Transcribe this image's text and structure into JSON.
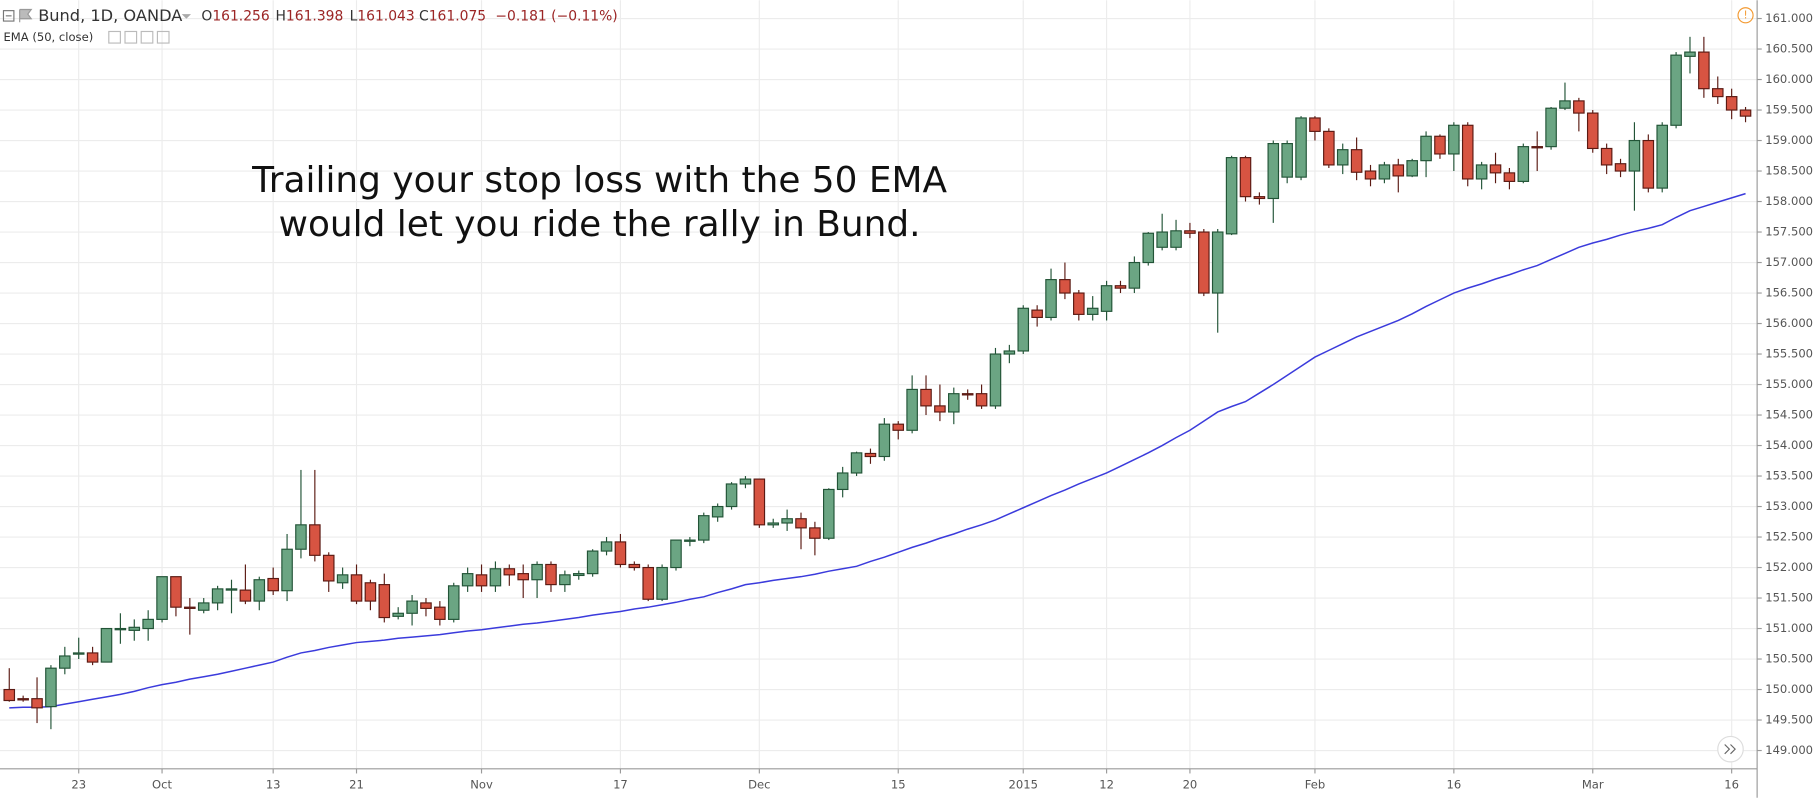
{
  "header": {
    "symbol": "Bund, 1D, OANDA",
    "ohlc": [
      {
        "label": "O",
        "value": "161.256"
      },
      {
        "label": "H",
        "value": "161.398"
      },
      {
        "label": "L",
        "value": "161.043"
      },
      {
        "label": "C",
        "value": "161.075"
      }
    ],
    "change": "−0.181 (−0.11%)"
  },
  "chart_data": {
    "type": "candlestick",
    "annotation": [
      "Trailing your stop loss with the 50 EMA",
      "would let you ride the rally in Bund."
    ],
    "categories": [
      null,
      null,
      null,
      null,
      null,
      "23",
      null,
      null,
      null,
      null,
      null,
      "Oct",
      null,
      null,
      null,
      null,
      null,
      null,
      null,
      "13",
      null,
      null,
      null,
      null,
      null,
      "21",
      null,
      null,
      null,
      null,
      null,
      null,
      null,
      null,
      "Nov",
      null,
      null,
      null,
      null,
      null,
      null,
      null,
      null,
      null,
      "17",
      null,
      null,
      null,
      null,
      null,
      null,
      null,
      null,
      null,
      "Dec",
      null,
      null,
      null,
      null,
      null,
      null,
      null,
      null,
      null,
      "15",
      null,
      null,
      null,
      null,
      null,
      null,
      null,
      null,
      "2015",
      null,
      null,
      null,
      null,
      null,
      "12",
      null,
      null,
      null,
      null,
      null,
      "20",
      null,
      null,
      null,
      null,
      null,
      null,
      null,
      null,
      "Feb",
      null,
      null,
      null,
      null,
      null,
      null,
      null,
      null,
      null,
      "16",
      null,
      null,
      null,
      null,
      null,
      null,
      null,
      null,
      null,
      "Mar",
      null,
      null,
      null,
      null,
      null,
      null,
      null,
      null,
      null,
      "16",
      null
    ],
    "open": [
      150.0,
      149.85,
      149.85,
      149.72,
      150.35,
      150.58,
      150.6,
      150.45,
      150.98,
      150.97,
      151.0,
      151.15,
      151.85,
      151.35,
      151.3,
      151.42,
      151.63,
      151.63,
      151.45,
      151.82,
      151.62,
      152.3,
      152.7,
      152.2,
      151.75,
      151.88,
      151.75,
      151.72,
      151.2,
      151.25,
      151.42,
      151.35,
      151.15,
      151.7,
      151.88,
      151.7,
      151.98,
      151.9,
      151.8,
      152.05,
      151.72,
      151.87,
      151.9,
      152.27,
      152.42,
      152.05,
      152.0,
      151.48,
      152.0,
      152.43,
      152.45,
      152.83,
      153.0,
      153.37,
      153.45,
      152.7,
      152.73,
      152.8,
      152.65,
      152.48,
      153.28,
      153.55,
      153.87,
      153.82,
      154.35,
      154.25,
      154.92,
      154.65,
      154.55,
      154.85,
      154.85,
      154.65,
      155.5,
      155.55,
      156.22,
      156.1,
      156.72,
      156.5,
      156.15,
      156.2,
      156.62,
      156.58,
      157.0,
      157.25,
      157.25,
      157.52,
      157.5,
      156.5,
      157.47,
      158.72,
      158.08,
      158.05,
      158.4,
      158.4,
      159.37,
      159.15,
      158.6,
      158.85,
      158.5,
      158.37,
      158.6,
      158.42,
      158.67,
      159.07,
      158.78,
      159.25,
      158.37,
      158.6,
      158.47,
      158.33,
      158.9,
      158.9,
      159.53,
      159.65,
      159.45,
      158.87,
      158.62,
      158.5,
      159.0,
      158.22,
      159.25,
      160.38,
      160.45,
      159.85,
      159.72,
      159.5
    ],
    "high": [
      150.35,
      149.9,
      150.2,
      150.4,
      150.7,
      150.85,
      150.7,
      151.0,
      151.25,
      151.15,
      151.3,
      151.85,
      151.85,
      151.5,
      151.5,
      151.7,
      151.8,
      152.05,
      151.85,
      152.0,
      152.55,
      153.6,
      153.6,
      152.25,
      152.0,
      152.05,
      151.8,
      151.9,
      151.35,
      151.55,
      151.5,
      151.45,
      151.75,
      152.0,
      152.05,
      152.1,
      152.05,
      152.05,
      152.1,
      152.1,
      151.95,
      151.95,
      152.3,
      152.5,
      152.55,
      152.1,
      152.05,
      152.05,
      152.45,
      152.5,
      152.9,
      153.05,
      153.4,
      153.5,
      153.45,
      152.8,
      152.95,
      152.9,
      152.75,
      153.3,
      153.65,
      153.9,
      153.95,
      154.45,
      154.4,
      155.15,
      155.15,
      155.0,
      154.95,
      154.92,
      155.0,
      155.6,
      155.65,
      156.3,
      156.3,
      156.9,
      157.0,
      156.55,
      156.45,
      156.7,
      156.7,
      157.1,
      157.5,
      157.8,
      157.7,
      157.65,
      157.55,
      157.55,
      158.75,
      158.75,
      158.15,
      159.0,
      159.0,
      159.4,
      159.4,
      159.2,
      158.95,
      159.05,
      158.6,
      158.65,
      158.7,
      158.7,
      159.15,
      159.1,
      159.3,
      159.3,
      158.65,
      158.8,
      158.55,
      158.95,
      159.15,
      159.55,
      159.95,
      159.7,
      159.5,
      158.95,
      158.7,
      159.3,
      159.1,
      159.3,
      160.45,
      160.7,
      160.7,
      160.05,
      159.85,
      159.55
    ],
    "low": [
      149.8,
      149.8,
      149.45,
      149.35,
      150.25,
      150.5,
      150.4,
      150.45,
      150.75,
      150.8,
      150.8,
      151.1,
      151.2,
      150.9,
      151.25,
      151.3,
      151.25,
      151.4,
      151.3,
      151.55,
      151.45,
      152.15,
      152.1,
      151.6,
      151.65,
      151.4,
      151.3,
      151.1,
      151.15,
      151.05,
      151.2,
      151.05,
      151.1,
      151.6,
      151.6,
      151.6,
      151.7,
      151.5,
      151.5,
      151.6,
      151.6,
      151.8,
      151.85,
      152.2,
      152.0,
      151.95,
      151.45,
      151.45,
      151.95,
      152.35,
      152.4,
      152.75,
      152.95,
      153.3,
      152.65,
      152.65,
      152.6,
      152.3,
      152.2,
      152.45,
      153.15,
      153.5,
      153.7,
      153.75,
      154.1,
      154.2,
      154.5,
      154.4,
      154.35,
      154.75,
      154.6,
      154.6,
      155.35,
      155.5,
      155.95,
      156.05,
      156.4,
      156.05,
      156.05,
      156.05,
      156.5,
      156.5,
      156.95,
      157.2,
      157.2,
      157.4,
      156.45,
      155.85,
      157.45,
      158.0,
      157.95,
      157.65,
      158.3,
      158.35,
      159.0,
      158.55,
      158.45,
      158.35,
      158.25,
      158.3,
      158.15,
      158.4,
      158.4,
      158.7,
      158.5,
      158.25,
      158.2,
      158.3,
      158.2,
      158.3,
      158.5,
      158.85,
      159.5,
      159.15,
      158.8,
      158.45,
      158.4,
      157.85,
      158.15,
      158.15,
      159.2,
      160.1,
      159.7,
      159.6,
      159.35,
      159.3
    ],
    "close": [
      149.82,
      149.83,
      149.7,
      150.35,
      150.55,
      150.6,
      150.45,
      151.0,
      151.0,
      151.02,
      151.15,
      151.85,
      151.35,
      151.33,
      151.42,
      151.65,
      151.65,
      151.45,
      151.8,
      151.62,
      152.3,
      152.7,
      152.2,
      151.78,
      151.88,
      151.45,
      151.45,
      151.18,
      151.25,
      151.45,
      151.33,
      151.15,
      151.7,
      151.9,
      151.7,
      151.98,
      151.88,
      151.8,
      152.05,
      151.72,
      151.88,
      151.9,
      152.27,
      152.42,
      152.05,
      152.0,
      151.48,
      152.0,
      152.45,
      152.45,
      152.85,
      153.0,
      153.37,
      153.45,
      152.7,
      152.73,
      152.8,
      152.65,
      152.48,
      153.28,
      153.55,
      153.88,
      153.82,
      154.35,
      154.25,
      154.92,
      154.65,
      154.55,
      154.85,
      154.83,
      154.65,
      155.5,
      155.55,
      156.25,
      156.1,
      156.72,
      156.5,
      156.15,
      156.25,
      156.62,
      156.58,
      157.0,
      157.48,
      157.5,
      157.52,
      157.48,
      156.5,
      157.5,
      158.72,
      158.08,
      158.05,
      158.95,
      158.95,
      159.37,
      159.15,
      158.6,
      158.85,
      158.48,
      158.37,
      158.6,
      158.42,
      158.67,
      159.07,
      158.78,
      159.25,
      158.37,
      158.6,
      158.47,
      158.33,
      158.9,
      158.88,
      159.53,
      159.65,
      159.45,
      158.87,
      158.6,
      158.5,
      159.0,
      158.22,
      159.25,
      160.4,
      160.45,
      159.85,
      159.72,
      159.5,
      159.4
    ],
    "up_color": "#6ba583",
    "up_border": "#225437",
    "down_color": "#d75442",
    "down_border": "#5b1a13",
    "series": [
      {
        "name": "EMA (50, close)",
        "type": "line",
        "color": "#3b3bdc",
        "values": [
          149.7,
          149.71,
          149.71,
          149.72,
          149.76,
          149.8,
          149.84,
          149.88,
          149.92,
          149.97,
          150.03,
          150.08,
          150.12,
          150.17,
          150.21,
          150.25,
          150.3,
          150.35,
          150.4,
          150.45,
          150.53,
          150.6,
          150.64,
          150.69,
          150.73,
          150.77,
          150.79,
          150.81,
          150.84,
          150.86,
          150.88,
          150.9,
          150.93,
          150.96,
          150.98,
          151.01,
          151.04,
          151.07,
          151.09,
          151.12,
          151.15,
          151.18,
          151.22,
          151.25,
          151.28,
          151.32,
          151.35,
          151.39,
          151.43,
          151.48,
          151.52,
          151.59,
          151.65,
          151.72,
          151.75,
          151.79,
          151.82,
          151.85,
          151.89,
          151.94,
          151.98,
          152.02,
          152.1,
          152.17,
          152.25,
          152.33,
          152.4,
          152.48,
          152.55,
          152.63,
          152.7,
          152.78,
          152.88,
          152.98,
          153.08,
          153.18,
          153.27,
          153.37,
          153.46,
          153.55,
          153.66,
          153.77,
          153.88,
          154.0,
          154.13,
          154.25,
          154.4,
          154.55,
          154.64,
          154.72,
          154.86,
          155.0,
          155.15,
          155.3,
          155.45,
          155.56,
          155.67,
          155.78,
          155.87,
          155.96,
          156.05,
          156.16,
          156.28,
          156.39,
          156.5,
          156.58,
          156.65,
          156.73,
          156.8,
          156.88,
          156.95,
          157.05,
          157.15,
          157.25,
          157.32,
          157.38,
          157.45,
          157.51,
          157.56,
          157.62,
          157.74,
          157.85,
          157.92,
          157.99,
          158.06,
          158.13
        ]
      }
    ],
    "ylim": [
      148.7,
      161.3
    ],
    "yticks": [
      {
        "value": 149,
        "label": "149.000"
      },
      {
        "value": 149.5,
        "label": "149.500"
      },
      {
        "value": 150,
        "label": "150.000"
      },
      {
        "value": 150.5,
        "label": "150.500"
      },
      {
        "value": 151,
        "label": "151.000"
      },
      {
        "value": 151.5,
        "label": "151.500"
      },
      {
        "value": 152,
        "label": "152.000"
      },
      {
        "value": 152.5,
        "label": "152.500"
      },
      {
        "value": 153,
        "label": "153.000"
      },
      {
        "value": 153.5,
        "label": "153.500"
      },
      {
        "value": 154,
        "label": "154.000"
      },
      {
        "value": 154.5,
        "label": "154.500"
      },
      {
        "value": 155,
        "label": "155.000"
      },
      {
        "value": 155.5,
        "label": "155.500"
      },
      {
        "value": 156,
        "label": "156.000"
      },
      {
        "value": 156.5,
        "label": "156.500"
      },
      {
        "value": 157,
        "label": "157.000"
      },
      {
        "value": 157.5,
        "label": "157.500"
      },
      {
        "value": 158,
        "label": "158.000"
      },
      {
        "value": 158.5,
        "label": "158.500"
      },
      {
        "value": 159,
        "label": "159.000"
      },
      {
        "value": 159.5,
        "label": "159.500"
      },
      {
        "value": 160,
        "label": "160.000"
      },
      {
        "value": 160.5,
        "label": "160.500"
      },
      {
        "value": 161,
        "label": "161.000"
      }
    ],
    "grid": true
  }
}
